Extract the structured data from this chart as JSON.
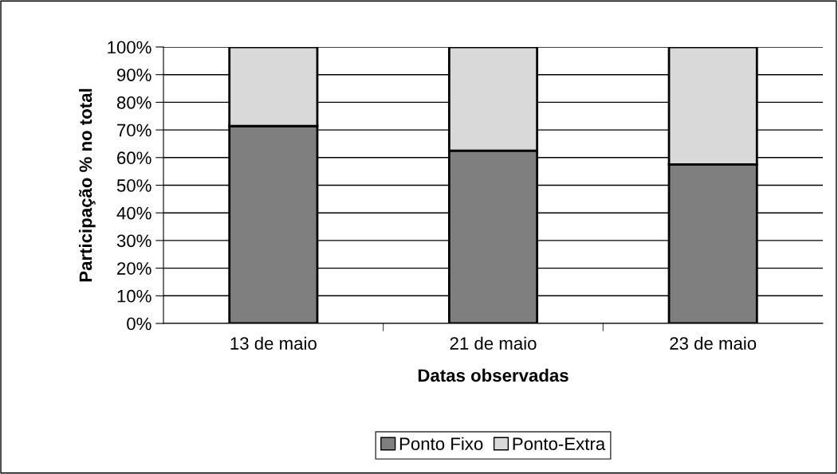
{
  "chart_data": {
    "type": "bar",
    "stacked": true,
    "xlabel": "Datas observadas",
    "ylabel": "Participação % no total",
    "categories": [
      "13 de maio",
      "21 de maio",
      "23 de maio"
    ],
    "series": [
      {
        "name": "Ponto Fixo",
        "color": "#7f7f7f",
        "values": [
          71.4,
          62.5,
          57.5
        ]
      },
      {
        "name": "Ponto-Extra",
        "color": "#d9d9d9",
        "values": [
          28.6,
          37.5,
          42.5
        ]
      }
    ],
    "ylim": [
      0,
      100
    ],
    "yticks": [
      {
        "value": 0,
        "label": "0%"
      },
      {
        "value": 10,
        "label": "10%"
      },
      {
        "value": 20,
        "label": "20%"
      },
      {
        "value": 30,
        "label": "30%"
      },
      {
        "value": 40,
        "label": "40%"
      },
      {
        "value": 50,
        "label": "50%"
      },
      {
        "value": 60,
        "label": "60%"
      },
      {
        "value": 70,
        "label": "70%"
      },
      {
        "value": 80,
        "label": "80%"
      },
      {
        "value": 90,
        "label": "90%"
      },
      {
        "value": 100,
        "label": "100%"
      }
    ],
    "grid": "y",
    "legend": "bottom"
  }
}
